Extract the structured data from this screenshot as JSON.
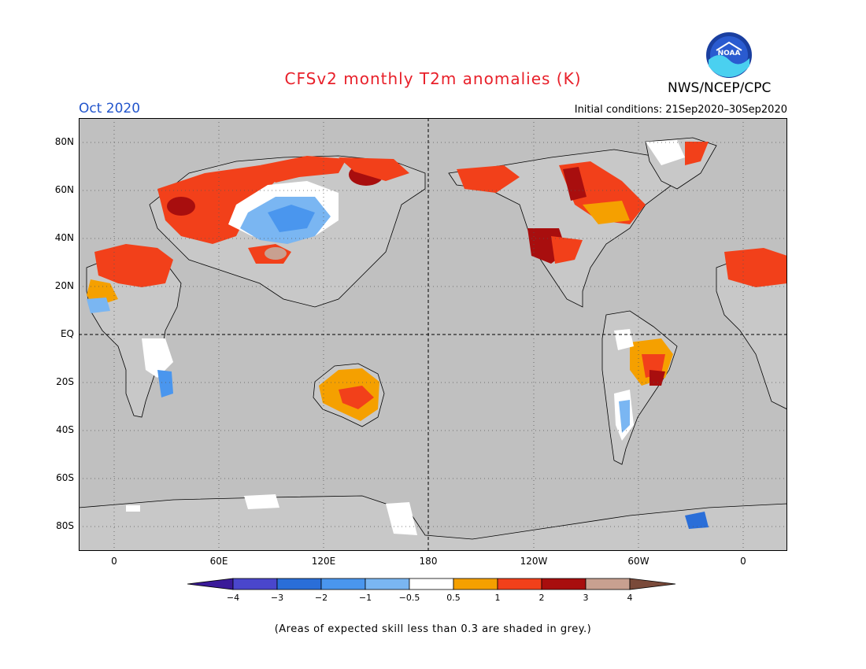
{
  "title": "CFSv2 monthly T2m anomalies (K)",
  "month": "Oct 2020",
  "initial_conditions": "Initial conditions: 21Sep2020–30Sep2020",
  "agency": "NWS/NCEP/CPC",
  "logo_text": "NOAA",
  "footnote": "(Areas of expected skill less than 0.3 are shaded in grey.)",
  "lat_labels": [
    "80N",
    "60N",
    "40N",
    "20N",
    "EQ",
    "20S",
    "40S",
    "60S",
    "80S"
  ],
  "lon_labels": [
    "0",
    "60E",
    "120E",
    "180",
    "120W",
    "60W",
    "0"
  ],
  "colorbar": {
    "ticks": [
      "−4",
      "−3",
      "−2",
      "−1",
      "−0.5",
      "0.5",
      "1",
      "2",
      "3",
      "4"
    ],
    "colors": [
      "#3a1a99",
      "#4a46cc",
      "#2a6ed8",
      "#4a96ee",
      "#7ab6f2",
      "#ffffff",
      "#f5a000",
      "#f2401a",
      "#a80e0e",
      "#c8a090",
      "#7a4a3a"
    ]
  },
  "colors": {
    "land_grey": "#c0c0c0",
    "title_red": "#e8202a",
    "month_blue": "#2255cc"
  }
}
